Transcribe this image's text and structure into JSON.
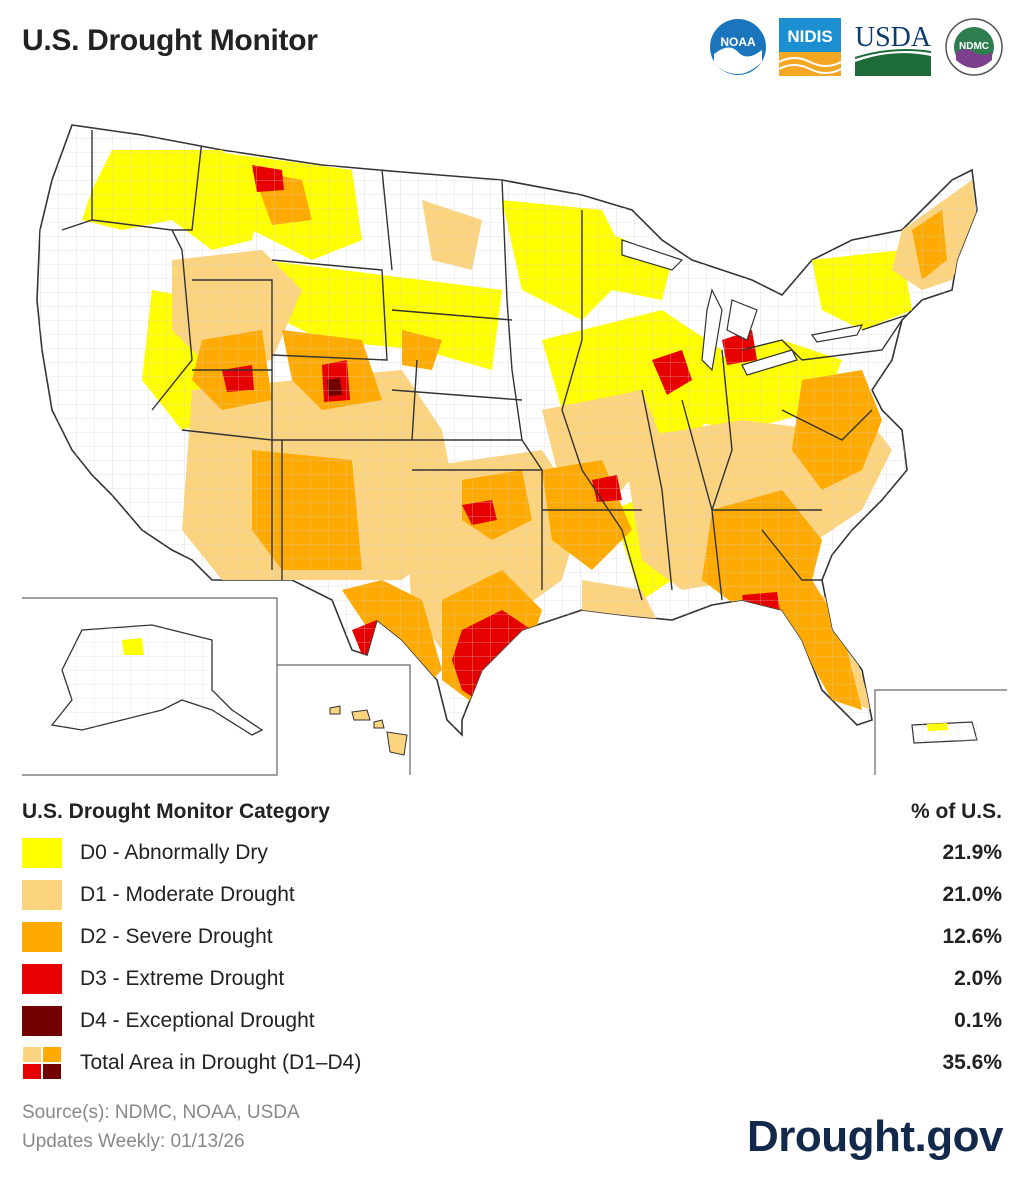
{
  "header": {
    "title": "U.S. Drought Monitor"
  },
  "logos": [
    {
      "name": "noaa-logo",
      "text": "NOAA"
    },
    {
      "name": "nidis-logo",
      "text": "NIDIS"
    },
    {
      "name": "usda-logo",
      "text": "USDA"
    },
    {
      "name": "ndmc-logo",
      "text": "NDMC"
    }
  ],
  "legend": {
    "heading": "U.S. Drought Monitor Category",
    "pct_heading": "% of U.S.",
    "items": [
      {
        "label": "D0 - Abnormally Dry",
        "pct": "21.9%",
        "color": "#ffff00"
      },
      {
        "label": "D1 - Moderate Drought",
        "pct": "21.0%",
        "color": "#fcd37f"
      },
      {
        "label": "D2 - Severe Drought",
        "pct": "12.6%",
        "color": "#ffaa00"
      },
      {
        "label": "D3 - Extreme Drought",
        "pct": "2.0%",
        "color": "#e60000"
      },
      {
        "label": "D4 - Exceptional Drought",
        "pct": "0.1%",
        "color": "#730000"
      }
    ],
    "total": {
      "label": "Total Area in Drought (D1–D4)",
      "pct": "35.6%"
    }
  },
  "footer": {
    "sources": "Source(s): NDMC, NOAA, USDA",
    "updates": "Updates Weekly: 01/13/26"
  },
  "brand": "Drought.gov"
}
